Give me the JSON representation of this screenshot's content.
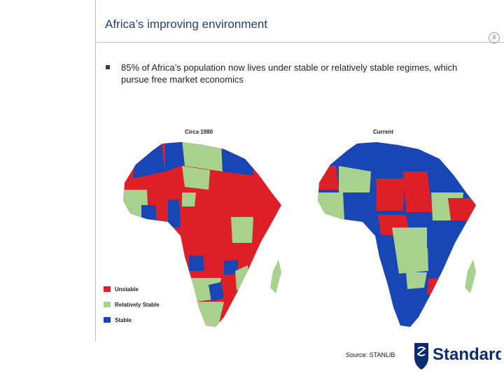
{
  "slide": {
    "title": "Africa’s improving environment",
    "page_number": "8",
    "bullet": "85% of Africa’s population now lives under stable or relatively stable regimes, which pursue free market economics"
  },
  "maps": {
    "left_label": "Circa 1980",
    "right_label": "Current"
  },
  "legend": {
    "items": [
      {
        "label": "Unstable",
        "color": "#dd2027"
      },
      {
        "label": "Relatively Stable",
        "color": "#a9d18e"
      },
      {
        "label": "Stable",
        "color": "#1846b4"
      }
    ]
  },
  "footer": {
    "source": "Source: STANLIB",
    "brand": "Standard"
  },
  "colors": {
    "title": "#1c3f7a",
    "unstable": "#dd2027",
    "relatively_stable": "#a9d18e",
    "stable": "#1846b4",
    "brand_blue": "#0b2c73"
  }
}
